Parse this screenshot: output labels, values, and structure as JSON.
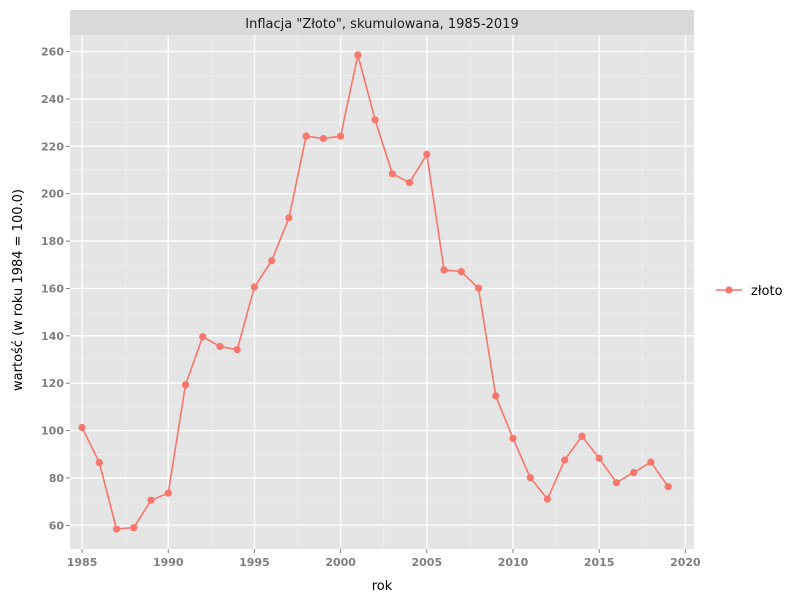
{
  "chart_data": {
    "type": "line",
    "title": "Inflacja \"Złoto\", skumulowana, 1985-2019",
    "xlabel": "rok",
    "ylabel": "wartość (w roku 1984 = 100.0)",
    "xlim": [
      1984.3,
      2020.5
    ],
    "ylim": [
      50,
      267
    ],
    "x_ticks": [
      1985,
      1990,
      1995,
      2000,
      2005,
      2010,
      2015,
      2020
    ],
    "y_ticks": [
      60,
      80,
      100,
      120,
      140,
      160,
      180,
      200,
      220,
      240,
      260
    ],
    "grid": true,
    "legend_position": "right",
    "series": [
      {
        "name": "złoto",
        "color": "#f8766d",
        "x": [
          1985,
          1986,
          1987,
          1988,
          1989,
          1990,
          1991,
          1992,
          1993,
          1994,
          1995,
          1996,
          1997,
          1998,
          1999,
          2000,
          2001,
          2002,
          2003,
          2004,
          2005,
          2006,
          2007,
          2008,
          2009,
          2010,
          2011,
          2012,
          2013,
          2014,
          2015,
          2016,
          2017,
          2018,
          2019
        ],
        "y": [
          101.3,
          86.5,
          58.4,
          59.0,
          70.6,
          73.6,
          119.3,
          139.6,
          135.5,
          134.2,
          160.6,
          171.7,
          189.8,
          224.3,
          223.3,
          224.3,
          258.6,
          231.2,
          208.4,
          204.7,
          216.6,
          167.8,
          167.1,
          160.1,
          114.6,
          96.7,
          80.1,
          71.1,
          87.6,
          97.6,
          88.3,
          78.0,
          82.3,
          86.7,
          76.3
        ]
      }
    ]
  }
}
